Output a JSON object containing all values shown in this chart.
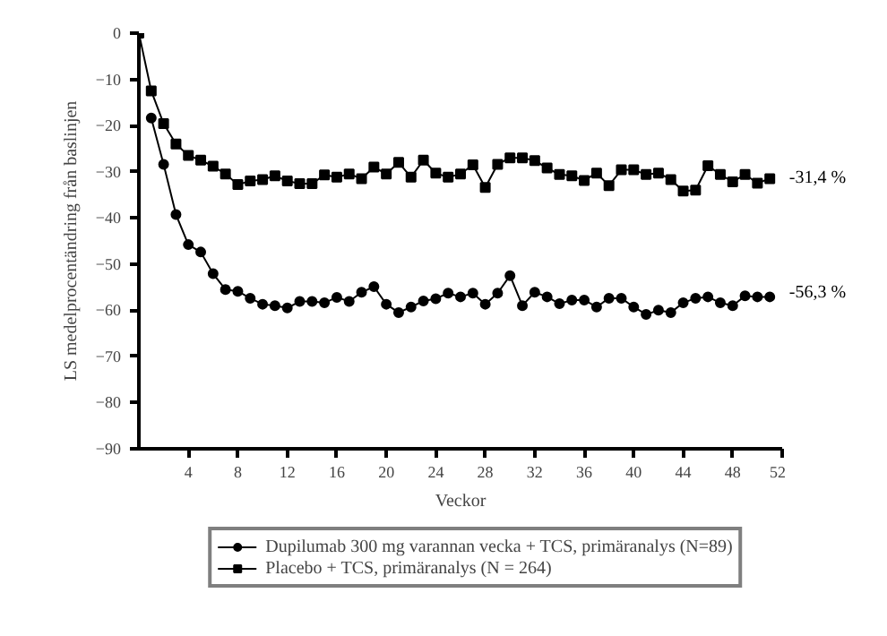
{
  "chart_data": {
    "type": "line",
    "xlabel": "Veckor",
    "ylabel": "LS medelprocentändring från baslinjen",
    "x": [
      0,
      1,
      2,
      3,
      4,
      5,
      6,
      7,
      8,
      9,
      10,
      11,
      12,
      13,
      14,
      15,
      16,
      17,
      18,
      19,
      20,
      21,
      22,
      23,
      24,
      25,
      26,
      27,
      28,
      29,
      30,
      31,
      32,
      33,
      34,
      35,
      36,
      37,
      38,
      39,
      40,
      41,
      42,
      43,
      44,
      45,
      46,
      47,
      48,
      49,
      50,
      51
    ],
    "series": [
      {
        "name": "Dupilumab 300 mg varannan vecka + TCS, primäranalys (N=89)",
        "color": "#000000",
        "marker": "circle",
        "values": [
          null,
          -18.4,
          -28.4,
          -39.3,
          -45.8,
          -47.4,
          -52.1,
          -55.5,
          -55.9,
          -57.4,
          -58.7,
          -59,
          -59.5,
          -58.1,
          -58.1,
          -58.4,
          -57.2,
          -58.1,
          -56.1,
          -54.9,
          -58.7,
          -60.5,
          -59.3,
          -58,
          -57.5,
          -56.3,
          -57.1,
          -56.3,
          -58.7,
          -56.3,
          -52.5,
          -59,
          -56.1,
          -57.1,
          -58.6,
          -57.8,
          -57.8,
          -59.3,
          -57.4,
          -57.4,
          -59.3,
          -60.9,
          -60,
          -60.5,
          -58.4,
          -57.4,
          -57.1,
          -58.4,
          -59,
          -56.9,
          -57.1,
          -57.1
        ]
      },
      {
        "name": "Placebo + TCS, primäranalys (N = 264)",
        "color": "#000000",
        "marker": "square",
        "values": [
          0,
          -12.5,
          -19.6,
          -24,
          -26.5,
          -27.5,
          -28.8,
          -30.5,
          -32.8,
          -32,
          -31.7,
          -30.9,
          -32,
          -32.6,
          -32.6,
          -30.7,
          -31.2,
          -30.5,
          -31.5,
          -29,
          -30.5,
          -28,
          -31.2,
          -27.5,
          -30.3,
          -31.2,
          -30.5,
          -28.5,
          -33.4,
          -28.4,
          -27,
          -27,
          -27.6,
          -29.2,
          -30.6,
          -30.9,
          -31.9,
          -30.3,
          -33,
          -29.6,
          -29.6,
          -30.6,
          -30.3,
          -31.7,
          -34.2,
          -34,
          -28.7,
          -30.6,
          -32.2,
          -30.6,
          -32.5,
          -31.5
        ]
      }
    ],
    "annotations": [
      {
        "text": "-31,4 %",
        "x": 51,
        "y": -31.4
      },
      {
        "text": "-56,3 %",
        "x": 51,
        "y": -56.3
      }
    ],
    "xlim": [
      0,
      52
    ],
    "xticks": [
      4,
      8,
      12,
      16,
      20,
      24,
      28,
      32,
      36,
      40,
      44,
      48,
      52
    ],
    "ylim": [
      -90,
      0
    ],
    "yticks": [
      0,
      -10,
      -20,
      -30,
      -40,
      -50,
      -60,
      -70,
      -80,
      -90
    ],
    "grid": false,
    "legend": "bottom",
    "line_style": "solid"
  }
}
